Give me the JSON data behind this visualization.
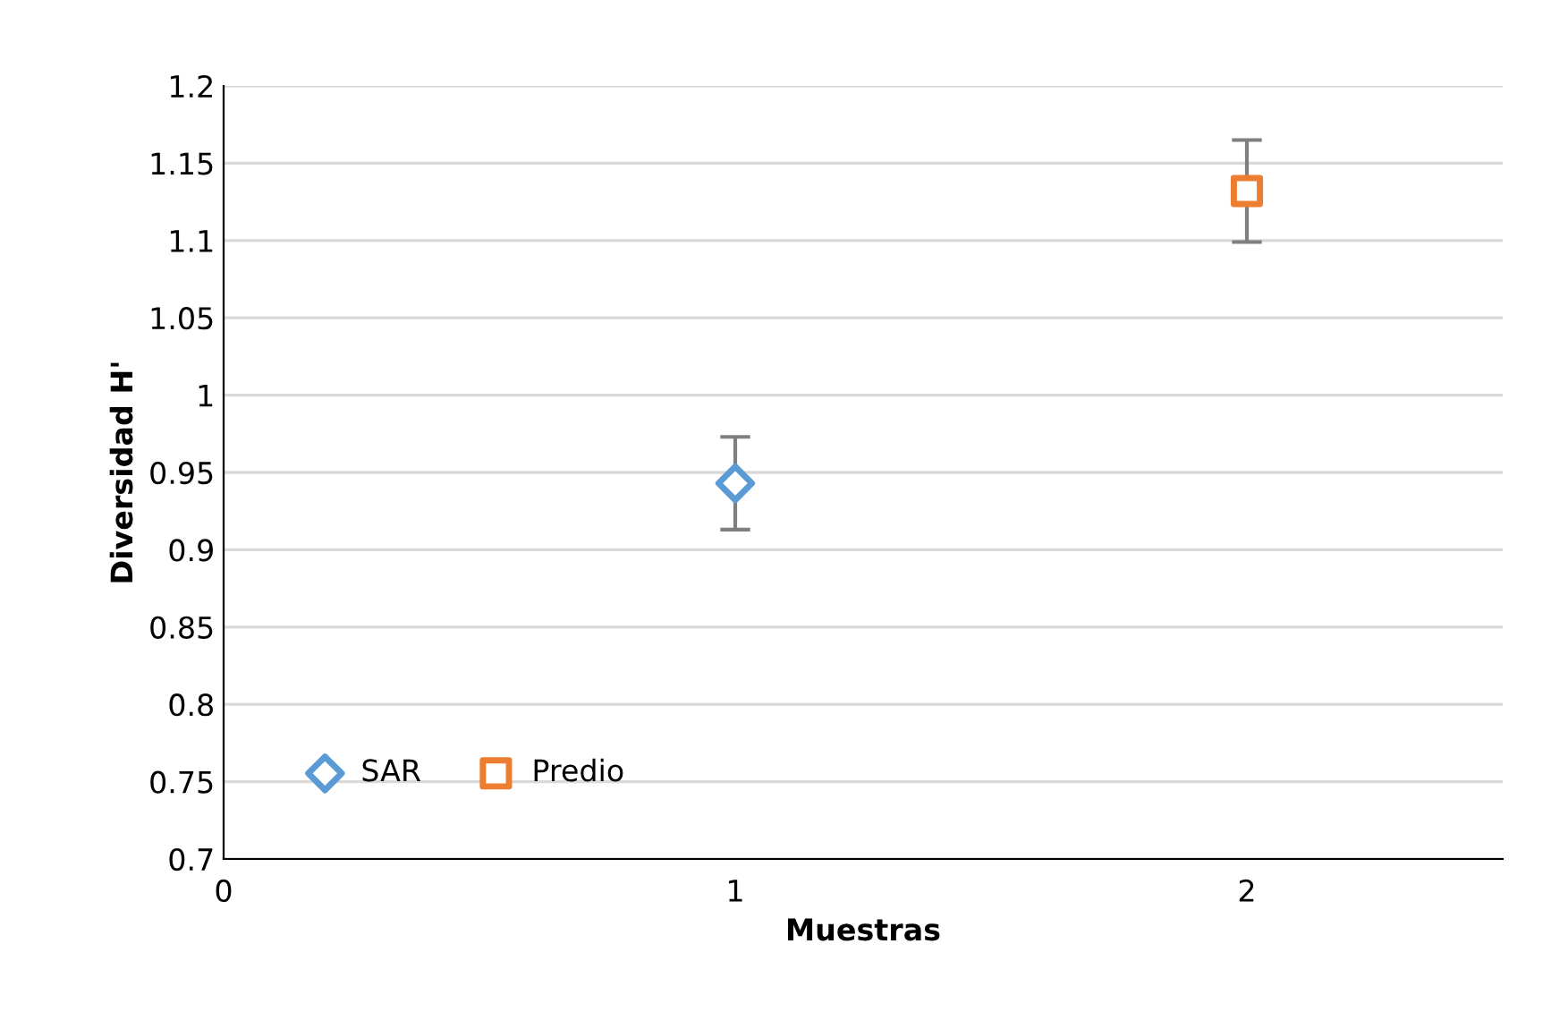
{
  "chart_data": {
    "type": "scatter",
    "xlabel": "Muestras",
    "ylabel": "Diversidad H'",
    "series": [
      {
        "name": "SAR",
        "color": "#5b9bd5",
        "marker": "diamond",
        "x": [
          1
        ],
        "values": [
          0.943
        ],
        "errors": [
          0.03
        ]
      },
      {
        "name": "Predio",
        "color": "#ed7d31",
        "marker": "square",
        "x": [
          2
        ],
        "values": [
          1.132
        ],
        "errors": [
          0.033
        ]
      }
    ],
    "xlim": [
      0,
      2.5
    ],
    "xticks": [
      0,
      1,
      2
    ],
    "ylim": [
      0.7,
      1.2
    ],
    "yticks": [
      0.7,
      0.75,
      0.8,
      0.85,
      0.9,
      0.95,
      1,
      1.05,
      1.1,
      1.15,
      1.2
    ],
    "grid": "y",
    "legend": "bottom left"
  }
}
